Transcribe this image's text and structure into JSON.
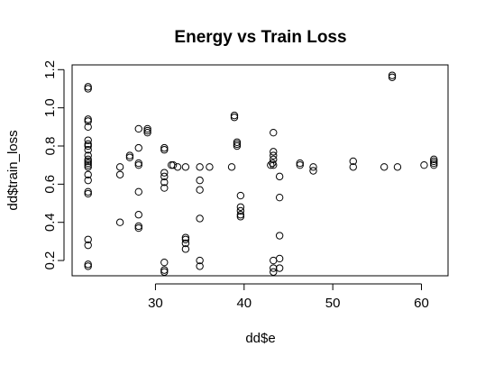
{
  "chart_data": {
    "type": "scatter",
    "title": "Energy vs Train Loss",
    "xlabel": "dd$e",
    "ylabel": "dd$train_loss",
    "xlim": [
      20.6,
      63.0
    ],
    "ylim": [
      0.12,
      1.225
    ],
    "xticks": [
      30,
      40,
      50,
      60
    ],
    "yticks": [
      0.2,
      0.4,
      0.6,
      0.8,
      1.0,
      1.2
    ],
    "xtick_labels": [
      "30",
      "40",
      "50",
      "60"
    ],
    "ytick_labels": [
      "0.2",
      "0.4",
      "0.6",
      "0.8",
      "1.0",
      "1.2"
    ],
    "grid": false,
    "marker": "open-circle",
    "points": [
      [
        22.4,
        1.11
      ],
      [
        22.4,
        1.1
      ],
      [
        22.4,
        0.94
      ],
      [
        22.4,
        0.93
      ],
      [
        22.4,
        0.9
      ],
      [
        22.4,
        0.83
      ],
      [
        22.4,
        0.81
      ],
      [
        22.4,
        0.8
      ],
      [
        22.4,
        0.78
      ],
      [
        22.4,
        0.75
      ],
      [
        22.4,
        0.73
      ],
      [
        22.4,
        0.72
      ],
      [
        22.4,
        0.71
      ],
      [
        22.4,
        0.7
      ],
      [
        22.4,
        0.69
      ],
      [
        22.4,
        0.65
      ],
      [
        22.4,
        0.62
      ],
      [
        22.4,
        0.56
      ],
      [
        22.4,
        0.55
      ],
      [
        22.4,
        0.31
      ],
      [
        22.4,
        0.28
      ],
      [
        22.4,
        0.18
      ],
      [
        22.4,
        0.17
      ],
      [
        26.0,
        0.69
      ],
      [
        26.0,
        0.65
      ],
      [
        26.0,
        0.4
      ],
      [
        27.1,
        0.75
      ],
      [
        27.1,
        0.74
      ],
      [
        28.1,
        0.89
      ],
      [
        28.1,
        0.79
      ],
      [
        28.1,
        0.71
      ],
      [
        28.1,
        0.7
      ],
      [
        28.1,
        0.56
      ],
      [
        28.1,
        0.44
      ],
      [
        28.1,
        0.38
      ],
      [
        28.1,
        0.37
      ],
      [
        29.1,
        0.89
      ],
      [
        29.1,
        0.88
      ],
      [
        29.1,
        0.87
      ],
      [
        31.0,
        0.79
      ],
      [
        31.0,
        0.78
      ],
      [
        31.0,
        0.66
      ],
      [
        31.0,
        0.64
      ],
      [
        31.0,
        0.61
      ],
      [
        31.0,
        0.58
      ],
      [
        31.0,
        0.19
      ],
      [
        31.0,
        0.15
      ],
      [
        31.0,
        0.14
      ],
      [
        31.8,
        0.7
      ],
      [
        32.0,
        0.7
      ],
      [
        32.5,
        0.69
      ],
      [
        33.4,
        0.69
      ],
      [
        33.4,
        0.32
      ],
      [
        33.4,
        0.31
      ],
      [
        33.4,
        0.29
      ],
      [
        33.4,
        0.26
      ],
      [
        35.0,
        0.69
      ],
      [
        35.0,
        0.62
      ],
      [
        35.0,
        0.57
      ],
      [
        35.0,
        0.42
      ],
      [
        35.0,
        0.2
      ],
      [
        35.0,
        0.17
      ],
      [
        36.1,
        0.69
      ],
      [
        38.6,
        0.69
      ],
      [
        38.9,
        0.96
      ],
      [
        38.9,
        0.95
      ],
      [
        39.2,
        0.82
      ],
      [
        39.2,
        0.81
      ],
      [
        39.2,
        0.8
      ],
      [
        39.6,
        0.54
      ],
      [
        39.6,
        0.48
      ],
      [
        39.6,
        0.46
      ],
      [
        39.6,
        0.44
      ],
      [
        39.6,
        0.43
      ],
      [
        43.0,
        0.7
      ],
      [
        43.2,
        0.71
      ],
      [
        43.3,
        0.87
      ],
      [
        43.3,
        0.77
      ],
      [
        43.3,
        0.75
      ],
      [
        43.3,
        0.73
      ],
      [
        43.3,
        0.7
      ],
      [
        43.3,
        0.2
      ],
      [
        43.3,
        0.16
      ],
      [
        43.3,
        0.14
      ],
      [
        44.0,
        0.64
      ],
      [
        44.0,
        0.53
      ],
      [
        44.0,
        0.33
      ],
      [
        44.0,
        0.21
      ],
      [
        44.0,
        0.16
      ],
      [
        46.3,
        0.71
      ],
      [
        46.3,
        0.7
      ],
      [
        47.8,
        0.69
      ],
      [
        47.8,
        0.67
      ],
      [
        52.3,
        0.72
      ],
      [
        52.3,
        0.69
      ],
      [
        55.8,
        0.69
      ],
      [
        57.3,
        0.69
      ],
      [
        56.7,
        1.17
      ],
      [
        56.7,
        1.16
      ],
      [
        60.3,
        0.7
      ],
      [
        61.4,
        0.73
      ],
      [
        61.4,
        0.72
      ],
      [
        61.4,
        0.71
      ],
      [
        61.4,
        0.7
      ]
    ]
  }
}
